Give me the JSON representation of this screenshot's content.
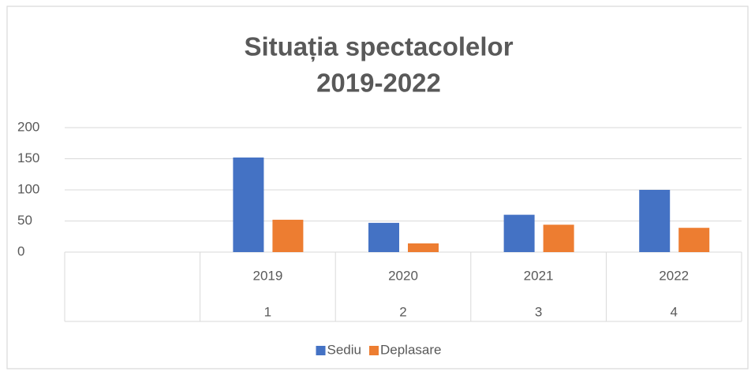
{
  "chart_data": {
    "type": "bar",
    "title": [
      "Situația spectacolelor",
      "2019-2022"
    ],
    "categories": [
      null,
      "2019",
      "2020",
      "2021",
      "2022"
    ],
    "subcategories": [
      null,
      "1",
      "2",
      "3",
      "4"
    ],
    "series": [
      {
        "name": "Sediu",
        "color": "#4472c4",
        "values": [
          null,
          152,
          47,
          60,
          100
        ]
      },
      {
        "name": "Deplasare",
        "color": "#ed7d31",
        "values": [
          null,
          52,
          14,
          44,
          39
        ]
      }
    ],
    "ylim": [
      0,
      200
    ],
    "yticks": [
      0,
      50,
      100,
      150,
      200
    ],
    "grid": true,
    "legend": "bottom"
  }
}
